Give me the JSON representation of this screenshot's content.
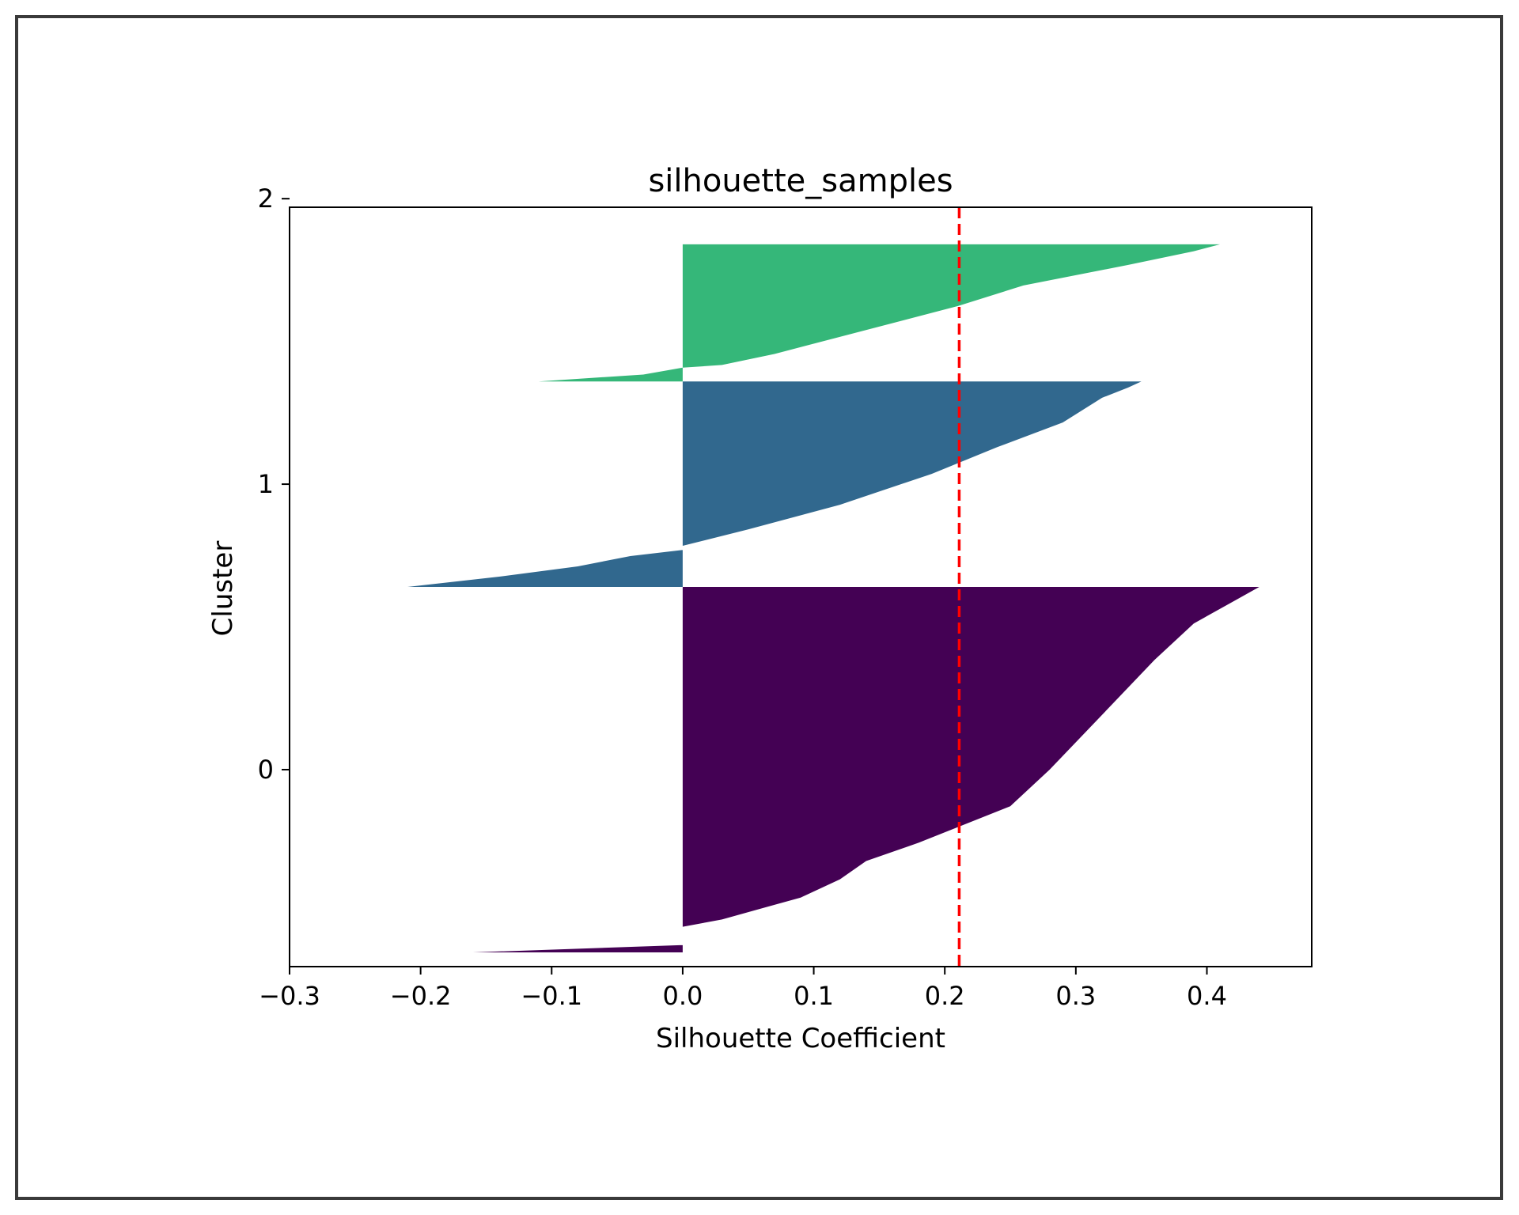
{
  "chart_data": {
    "type": "silhouette",
    "title": "silhouette_samples",
    "xlabel": "Silhouette Coefficient",
    "ylabel": "Cluster",
    "xlim": [
      -0.3,
      0.48
    ],
    "x_ticks": [
      -0.3,
      -0.2,
      -0.1,
      0.0,
      0.1,
      0.2,
      0.3,
      0.4
    ],
    "x_tick_labels": [
      "−0.3",
      "−0.2",
      "−0.1",
      "0.0",
      "0.1",
      "0.2",
      "0.3",
      "0.4"
    ],
    "ylim": [
      -0.69,
      1.97
    ],
    "y_ticks": [
      0,
      1,
      2
    ],
    "y_tick_labels": [
      "0",
      "1",
      "2"
    ],
    "average_silhouette": 0.211,
    "average_line_color": "#ff0000",
    "clusters": [
      {
        "label": "0",
        "color": "#440154",
        "y_lower": -0.64,
        "y_upper": 0.64,
        "profile": [
          [
            0.0,
            -0.16
          ],
          [
            0.02,
            0.0
          ],
          [
            0.04,
            0.0
          ],
          [
            0.06,
            0.0
          ],
          [
            0.07,
            0.0
          ],
          [
            0.09,
            0.03
          ],
          [
            0.12,
            0.06
          ],
          [
            0.15,
            0.09
          ],
          [
            0.2,
            0.12
          ],
          [
            0.25,
            0.14
          ],
          [
            0.3,
            0.18
          ],
          [
            0.4,
            0.25
          ],
          [
            0.5,
            0.28
          ],
          [
            0.65,
            0.32
          ],
          [
            0.8,
            0.36
          ],
          [
            0.9,
            0.39
          ],
          [
            0.96,
            0.42
          ],
          [
            1.0,
            0.44
          ]
        ]
      },
      {
        "label": "1",
        "color": "#31688e",
        "y_lower": 0.64,
        "y_upper": 1.36,
        "profile": [
          [
            0.0,
            -0.21
          ],
          [
            0.05,
            -0.14
          ],
          [
            0.1,
            -0.08
          ],
          [
            0.15,
            -0.04
          ],
          [
            0.18,
            0.0
          ],
          [
            0.2,
            0.0
          ],
          [
            0.28,
            0.05
          ],
          [
            0.4,
            0.12
          ],
          [
            0.55,
            0.19
          ],
          [
            0.68,
            0.24
          ],
          [
            0.8,
            0.29
          ],
          [
            0.92,
            0.32
          ],
          [
            0.97,
            0.34
          ],
          [
            1.0,
            0.35
          ]
        ]
      },
      {
        "label": "2",
        "color": "#35b779",
        "y_lower": 1.36,
        "y_upper": 1.84,
        "profile": [
          [
            0.0,
            -0.11
          ],
          [
            0.05,
            -0.03
          ],
          [
            0.1,
            0.0
          ],
          [
            0.12,
            0.03
          ],
          [
            0.2,
            0.07
          ],
          [
            0.4,
            0.15
          ],
          [
            0.55,
            0.21
          ],
          [
            0.7,
            0.26
          ],
          [
            0.85,
            0.34
          ],
          [
            0.95,
            0.39
          ],
          [
            1.0,
            0.41
          ]
        ]
      }
    ]
  }
}
